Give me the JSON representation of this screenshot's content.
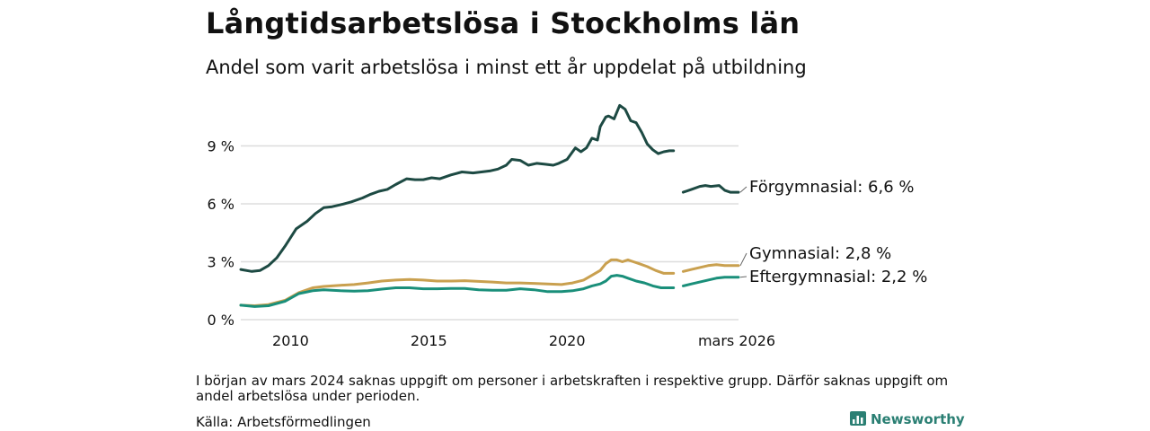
{
  "title": "Långtidsarbetslösa i Stockholms län",
  "subtitle": "Andel som varit arbetslösa i minst ett år uppdelat på utbildning",
  "note": "I början av mars 2024 saknas uppgift om personer i arbetskraften i respektive grupp. Därför saknas uppgift om andel arbetslösa under perioden.",
  "source": "Källa: Arbetsförmedlingen",
  "brand": "Newsworthy",
  "colors": {
    "forgymnasial": "#1d4a43",
    "gymnasial": "#c9a04f",
    "eftergymnasial": "#1a8f7a",
    "grid": "#dddddd",
    "brand": "#2a7f73"
  },
  "chart_data": {
    "type": "line",
    "title": "Långtidsarbetslösa i Stockholms län",
    "xlabel": "",
    "ylabel": "",
    "ylim": [
      0,
      12
    ],
    "xlim": [
      2008.2,
      2026.2
    ],
    "yticks": [
      0,
      3,
      6,
      9
    ],
    "ytick_labels": [
      "0 %",
      "3 %",
      "6 %",
      "9 %"
    ],
    "xticks": [
      2010,
      2015,
      2020,
      2026.17
    ],
    "xtick_labels": [
      "2010",
      "2015",
      "2020",
      "mars 2026"
    ],
    "gap": [
      2023.85,
      2024.2
    ],
    "series": [
      {
        "name": "Förgymnasial",
        "label": "Förgymnasial: 6,6 %",
        "color": "#1d4a43",
        "x": [
          2008.2,
          2008.6,
          2008.9,
          2009.2,
          2009.5,
          2009.8,
          2010.2,
          2010.6,
          2010.9,
          2011.2,
          2011.5,
          2011.8,
          2012.2,
          2012.6,
          2012.9,
          2013.2,
          2013.5,
          2013.8,
          2014.2,
          2014.5,
          2014.8,
          2015.1,
          2015.4,
          2015.8,
          2016.2,
          2016.6,
          2016.9,
          2017.2,
          2017.5,
          2017.8,
          2018.0,
          2018.3,
          2018.6,
          2018.9,
          2019.2,
          2019.5,
          2019.7,
          2020.0,
          2020.3,
          2020.5,
          2020.7,
          2020.9,
          2021.1,
          2021.2,
          2021.4,
          2021.5,
          2021.7,
          2021.9,
          2022.1,
          2022.3,
          2022.5,
          2022.7,
          2022.9,
          2023.1,
          2023.3,
          2023.5,
          2023.7,
          2023.85,
          2024.2,
          2024.5,
          2024.8,
          2025.0,
          2025.2,
          2025.5,
          2025.7,
          2025.9,
          2026.2
        ],
        "y": [
          2.6,
          2.5,
          2.55,
          2.8,
          3.2,
          3.8,
          4.7,
          5.1,
          5.5,
          5.8,
          5.85,
          5.95,
          6.1,
          6.3,
          6.5,
          6.65,
          6.75,
          7.0,
          7.3,
          7.25,
          7.25,
          7.35,
          7.3,
          7.5,
          7.65,
          7.6,
          7.65,
          7.7,
          7.8,
          8.0,
          8.3,
          8.25,
          8.0,
          8.1,
          8.05,
          8.0,
          8.1,
          8.3,
          8.9,
          8.7,
          8.9,
          9.4,
          9.3,
          10.0,
          10.5,
          10.55,
          10.4,
          11.1,
          10.9,
          10.3,
          10.2,
          9.7,
          9.1,
          8.8,
          8.6,
          8.7,
          8.75,
          8.75,
          6.6,
          6.75,
          6.9,
          6.95,
          6.9,
          6.95,
          6.7,
          6.6,
          6.6
        ]
      },
      {
        "name": "Gymnasial",
        "label": "Gymnasial: 2,8 %",
        "color": "#c9a04f",
        "x": [
          2008.2,
          2008.7,
          2009.2,
          2009.8,
          2010.3,
          2010.8,
          2011.2,
          2011.8,
          2012.3,
          2012.8,
          2013.3,
          2013.8,
          2014.3,
          2014.8,
          2015.3,
          2015.8,
          2016.3,
          2016.8,
          2017.3,
          2017.8,
          2018.3,
          2018.8,
          2019.3,
          2019.8,
          2020.2,
          2020.6,
          2020.9,
          2021.2,
          2021.4,
          2021.6,
          2021.8,
          2022.0,
          2022.2,
          2022.4,
          2022.6,
          2022.9,
          2023.2,
          2023.5,
          2023.85,
          2024.2,
          2024.5,
          2024.8,
          2025.1,
          2025.4,
          2025.7,
          2026.2
        ],
        "y": [
          0.75,
          0.72,
          0.78,
          1.0,
          1.4,
          1.65,
          1.72,
          1.78,
          1.82,
          1.9,
          2.0,
          2.05,
          2.08,
          2.05,
          2.0,
          2.0,
          2.02,
          1.98,
          1.95,
          1.9,
          1.9,
          1.88,
          1.85,
          1.82,
          1.9,
          2.05,
          2.3,
          2.55,
          2.9,
          3.1,
          3.1,
          3.0,
          3.1,
          3.0,
          2.9,
          2.75,
          2.55,
          2.4,
          2.4,
          2.5,
          2.6,
          2.7,
          2.8,
          2.85,
          2.8,
          2.8
        ]
      },
      {
        "name": "Eftergymnasial",
        "label": "Eftergymnasial: 2,2 %",
        "color": "#1a8f7a",
        "x": [
          2008.2,
          2008.7,
          2009.2,
          2009.8,
          2010.3,
          2010.8,
          2011.2,
          2011.8,
          2012.3,
          2012.8,
          2013.3,
          2013.8,
          2014.3,
          2014.8,
          2015.3,
          2015.8,
          2016.3,
          2016.8,
          2017.3,
          2017.8,
          2018.3,
          2018.8,
          2019.3,
          2019.8,
          2020.2,
          2020.6,
          2020.9,
          2021.2,
          2021.4,
          2021.6,
          2021.8,
          2022.0,
          2022.2,
          2022.5,
          2022.8,
          2023.1,
          2023.4,
          2023.85,
          2024.2,
          2024.5,
          2024.8,
          2025.1,
          2025.4,
          2025.7,
          2026.2
        ],
        "y": [
          0.75,
          0.68,
          0.72,
          0.95,
          1.35,
          1.5,
          1.55,
          1.5,
          1.48,
          1.5,
          1.58,
          1.65,
          1.65,
          1.6,
          1.6,
          1.62,
          1.62,
          1.55,
          1.52,
          1.52,
          1.6,
          1.55,
          1.45,
          1.45,
          1.5,
          1.6,
          1.75,
          1.85,
          2.0,
          2.25,
          2.3,
          2.25,
          2.15,
          2.0,
          1.9,
          1.75,
          1.65,
          1.65,
          1.75,
          1.85,
          1.95,
          2.05,
          2.15,
          2.2,
          2.2
        ]
      }
    ]
  }
}
